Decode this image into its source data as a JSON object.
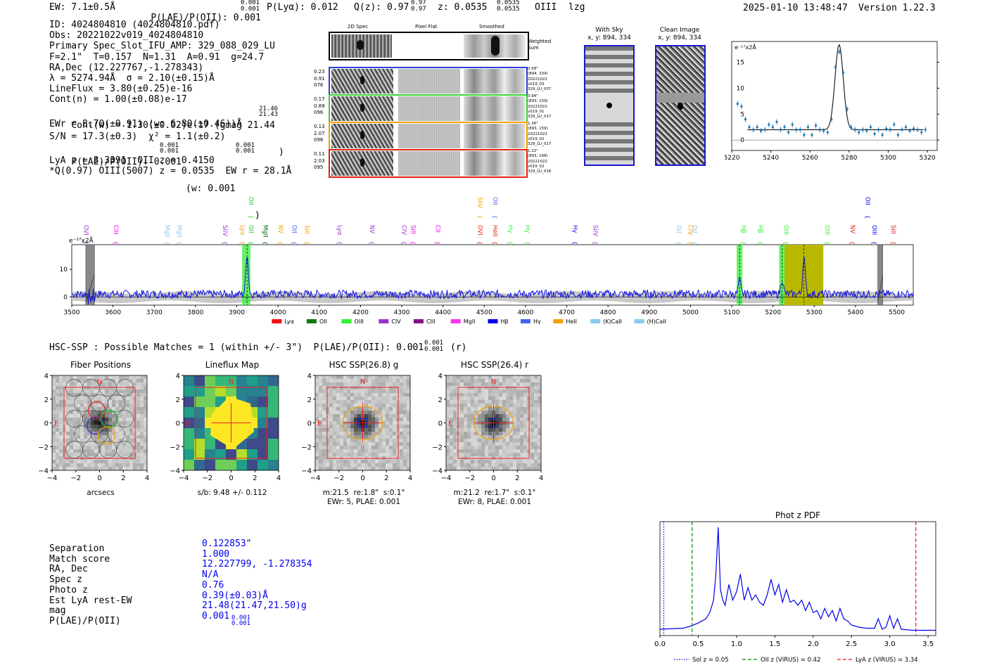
{
  "header": {
    "ew": "EW: 7.1±0.5Å",
    "plae_label": "P(LAE)/P(OII): 0.001",
    "plae_sup": "0.001",
    "plae_sub": "0.001",
    "plya": "P(Lyα): 0.012",
    "q_label": "Q(z): 0.97",
    "q_sup": "0.97",
    "q_sub": "0.97",
    "z_label": "z: 0.0535",
    "z_sup": "0.0535",
    "z_sub": "0.0535",
    "z_line": "OIII",
    "z_flag": "lzg",
    "datetime": "2025-01-10 13:48:47",
    "version": "Version 1.22.3"
  },
  "info": {
    "id": "ID: 4024804810 (4024804810.pdf)",
    "obs": "Obs: 20221022v019_4024804810",
    "primary": "Primary Spec_Slot_IFU_AMP: 329_088_029_LU",
    "fwhm": "F=2.1\"  T=0.157  N=1.31  A=0.91  g=24.7",
    "radec": "RA,Dec (12.227767,-1.278343)",
    "lambda": "λ = 5274.94Å  σ = 2.10(±0.15)Å",
    "lineflux": "LineFlux = 3.80(±0.25)e-16",
    "contn": "Cont(n) = 1.00(±0.08)e-17",
    "contw": "Cont(w) = 1.30(±0.02)e-17 (gmag 21.44",
    "contw_sup": "21.46",
    "contw_sub": "21.43",
    "ewr": "EWr = 8.70(±0.91) (w: 6.80(±0.46))Å",
    "sn": "S/N = 17.3(±0.3)  χ² = 1.1(±0.2)",
    "plae": "P(LAE)/P(OII): 0.001",
    "plae_sup": "0.001",
    "plae_sub": "0.001",
    "plae_w": "(w: 0.001",
    "plae_w_sup": "0.001",
    "plae_w_sub": "0.001",
    "lya": "LyA z = 3.3391  OII z = 0.4150",
    "q": "*Q(0.97) OIII(5007) z = 0.0535  EW r = 28.1Å"
  },
  "cutouts": {
    "col_2d": "2D Spec",
    "col_flat": "Pixel Flat",
    "col_smooth": "Smoothed",
    "weighted_sum": "Weighted Sum",
    "rows": [
      {
        "left": [
          "0.23",
          "0.91",
          "076"
        ],
        "right": [
          "0.58\"",
          "(894, 334)",
          "20221022",
          "v019_03",
          "329_LU_037"
        ],
        "color": "#2f3fd6"
      },
      {
        "left": [
          "0.17",
          "0.89",
          "096"
        ],
        "right": [
          "0.94\"",
          "(893, 159)",
          "20221022",
          "v019_01",
          "329_LU_017"
        ],
        "color": "#35d035"
      },
      {
        "left": [
          "0.13",
          "2.07",
          "096"
        ],
        "right": [
          "1.36\"",
          "(893, 159)",
          "20221022",
          "v019_02",
          "329_LU_017"
        ],
        "color": "#f4a000"
      },
      {
        "left": [
          "0.11",
          "2.03",
          "095"
        ],
        "right": [
          "1.22\"",
          "(893, 168)",
          "20221022",
          "v019_02",
          "329_LU_018"
        ],
        "color": "#e02010"
      }
    ],
    "with_sky": {
      "title": "With Sky",
      "coords": "x, y: 894, 334"
    },
    "clean_image": {
      "title": "Clean Image",
      "coords": "x, y: 894, 334"
    }
  },
  "zoom_chart": {
    "ylabel": "e⁻¹⁷x2Å",
    "xlim": [
      5220,
      5325
    ],
    "ylim": [
      -2,
      19
    ],
    "xticks": [
      "5220",
      "5240",
      "5260",
      "5280",
      "5300",
      "5320"
    ],
    "yticks": [
      "0",
      "5",
      "10",
      "15"
    ],
    "model_peak": 16.4,
    "model_center": 5274.9,
    "model_sigma": 2.1,
    "model_cont": 2.0,
    "points": [
      [
        5223,
        7
      ],
      [
        5225,
        6.5
      ],
      [
        5227,
        4
      ],
      [
        5229,
        2.5
      ],
      [
        5231,
        2
      ],
      [
        5233,
        2.5
      ],
      [
        5235,
        1.8
      ],
      [
        5237,
        2
      ],
      [
        5239,
        3
      ],
      [
        5241,
        2.5
      ],
      [
        5243,
        3.5
      ],
      [
        5245,
        2
      ],
      [
        5247,
        2.5
      ],
      [
        5249,
        1.5
      ],
      [
        5251,
        3
      ],
      [
        5253,
        2
      ],
      [
        5255,
        2
      ],
      [
        5257,
        1
      ],
      [
        5259,
        2.5
      ],
      [
        5261,
        1
      ],
      [
        5263,
        2.8
      ],
      [
        5265,
        2
      ],
      [
        5267,
        1.8
      ],
      [
        5269,
        1.5
      ],
      [
        5271,
        4
      ],
      [
        5273,
        14
      ],
      [
        5275,
        17
      ],
      [
        5277,
        13
      ],
      [
        5279,
        6
      ],
      [
        5281,
        2.5
      ],
      [
        5283,
        2
      ],
      [
        5285,
        1.5
      ],
      [
        5287,
        2
      ],
      [
        5289,
        1.8
      ],
      [
        5291,
        2.5
      ],
      [
        5293,
        1.2
      ],
      [
        5295,
        2
      ],
      [
        5297,
        1
      ],
      [
        5299,
        2.2
      ],
      [
        5301,
        2
      ],
      [
        5303,
        3
      ],
      [
        5305,
        1
      ],
      [
        5307,
        2
      ],
      [
        5309,
        2.5
      ],
      [
        5311,
        1.8
      ],
      [
        5313,
        2.2
      ],
      [
        5315,
        2
      ],
      [
        5317,
        1.5
      ],
      [
        5319,
        2
      ]
    ]
  },
  "full_spectrum": {
    "ylabel": "e⁻¹⁷x2Å",
    "xlim": [
      3500,
      5540
    ],
    "ylim": [
      -3,
      19
    ],
    "xticks": [
      "3500",
      "3600",
      "3700",
      "3800",
      "3900",
      "4000",
      "4100",
      "4200",
      "4300",
      "4400",
      "4500",
      "4600",
      "4700",
      "4800",
      "4900",
      "5000",
      "5100",
      "5200",
      "5300",
      "5400",
      "5500"
    ],
    "yticks": [
      "0",
      "10"
    ],
    "peaks": [
      [
        3925,
        15
      ],
      [
        5119,
        5
      ],
      [
        5222,
        5.5
      ],
      [
        5275,
        14
      ]
    ],
    "highlights": [
      {
        "x0": 3913,
        "x1": 3933,
        "color": "#33ee33"
      },
      {
        "x0": 5112,
        "x1": 5126,
        "color": "#33ee33"
      },
      {
        "x0": 5215,
        "x1": 5229,
        "color": "#33ee33"
      },
      {
        "x0": 5228,
        "x1": 5322,
        "color": "#b8b800"
      }
    ],
    "masks": [
      {
        "x0": 3534,
        "x1": 3555
      },
      {
        "x0": 5454,
        "x1": 5466
      }
    ],
    "dashed": [
      3925,
      5119,
      5222,
      5275
    ],
    "line_labels": [
      {
        "text": "OVI",
        "x": 3525,
        "color": "#9933cc",
        "row": 1
      },
      {
        "text": "CIII",
        "x": 3597,
        "color": "#ee00ee",
        "row": 1
      },
      {
        "text": "MgII",
        "x": 3722,
        "color": "#88ccee",
        "row": 1
      },
      {
        "text": "MgII",
        "x": 3752,
        "color": "#88ccee",
        "row": 1
      },
      {
        "text": "SiIV",
        "x": 3862,
        "color": "#9933cc",
        "row": 1
      },
      {
        "text": "Lyα",
        "x": 3904,
        "color": "#f4a000",
        "row": 1
      },
      {
        "text": "OII",
        "x": 3925,
        "color": "#22cc22",
        "row": 1
      },
      {
        "text": "OII",
        "x": 3925,
        "color": "#22cc22",
        "row": 0
      },
      {
        "text": "MgII",
        "x": 3960,
        "color": "#006600",
        "row": 1
      },
      {
        "text": "NV",
        "x": 3996,
        "color": "#f4a000",
        "row": 1
      },
      {
        "text": "OII",
        "x": 4030,
        "color": "#4466ee",
        "row": 1
      },
      {
        "text": "SiII",
        "x": 4060,
        "color": "#f4a000",
        "row": 1
      },
      {
        "text": "Lyα",
        "x": 4140,
        "color": "#9933cc",
        "row": 1
      },
      {
        "text": "NV",
        "x": 4218,
        "color": "#9933cc",
        "row": 1
      },
      {
        "text": "CIV",
        "x": 4296,
        "color": "#9933cc",
        "row": 1
      },
      {
        "text": "SiII",
        "x": 4318,
        "color": "#ee00ee",
        "row": 1
      },
      {
        "text": "CII",
        "x": 4378,
        "color": "#ee00ee",
        "row": 1
      },
      {
        "text": "SiIV",
        "x": 4480,
        "color": "#f4a000",
        "row": 0
      },
      {
        "text": "OVI",
        "x": 4480,
        "color": "#e02010",
        "row": 1
      },
      {
        "text": "OII",
        "x": 4517,
        "color": "#4466ee",
        "row": 0
      },
      {
        "text": "HeII",
        "x": 4517,
        "color": "#e02010",
        "row": 1
      },
      {
        "text": "Hγ",
        "x": 4553,
        "color": "#33ee33",
        "row": 1
      },
      {
        "text": "Hγ",
        "x": 4595,
        "color": "#33ee33",
        "row": 1
      },
      {
        "text": "Hγ",
        "x": 4710,
        "color": "#0000ee",
        "row": 1
      },
      {
        "text": "SiIV",
        "x": 4760,
        "color": "#9933cc",
        "row": 1
      },
      {
        "text": "OII",
        "x": 4962,
        "color": "#88ccee",
        "row": 1
      },
      {
        "text": "CIV",
        "x": 4990,
        "color": "#f4a000",
        "row": 1
      },
      {
        "text": "OII",
        "x": 5000,
        "color": "#88ccee",
        "row": 1
      },
      {
        "text": "Hβ",
        "x": 5119,
        "color": "#33ee33",
        "row": 1
      },
      {
        "text": "Hβ",
        "x": 5160,
        "color": "#33ee33",
        "row": 1
      },
      {
        "text": "OIII",
        "x": 5222,
        "color": "#33ee33",
        "row": 1
      },
      {
        "text": "OIII",
        "x": 5322,
        "color": "#33ee33",
        "row": 1
      },
      {
        "text": "NV",
        "x": 5383,
        "color": "#e02010",
        "row": 1
      },
      {
        "text": "OII",
        "x": 5420,
        "color": "#0000ee",
        "row": 0
      },
      {
        "text": "OIII",
        "x": 5436,
        "color": "#0000ee",
        "row": 1
      },
      {
        "text": "SiII",
        "x": 5482,
        "color": "#e02010",
        "row": 1
      }
    ],
    "legend": [
      {
        "label": "Lyα",
        "color": "#ee1111"
      },
      {
        "label": "OII",
        "color": "#117711"
      },
      {
        "label": "OIII",
        "color": "#33ee33"
      },
      {
        "label": "CIV",
        "color": "#9933cc"
      },
      {
        "label": "CIII",
        "color": "#881188"
      },
      {
        "label": "MgII",
        "color": "#ff33ee"
      },
      {
        "label": "Hβ",
        "color": "#0000ee"
      },
      {
        "label": "Hγ",
        "color": "#4466ee"
      },
      {
        "label": "HeII",
        "color": "#f4a000"
      },
      {
        "label": "(K)CaII",
        "color": "#88ccee"
      },
      {
        "label": "(H)CaII",
        "color": "#88ccee"
      }
    ]
  },
  "hsc": {
    "headline": "HSC-SSP : Possible Matches = 1 (within +/- 3\")  P(LAE)/P(OII): 0.001",
    "headline_sup": "0.001",
    "headline_sub": "0.001",
    "headline_tail": "(r)",
    "panels": [
      {
        "title": "Fiber Positions",
        "xlabel": "arcsecs",
        "caption": []
      },
      {
        "title": "Lineflux Map",
        "xlabel": "s/b: 9.48 +/- 0.112",
        "caption": []
      },
      {
        "title": "HSC SSP(26.8) g",
        "xlabel": "m:21.5  re:1.8\"  s:0.1\"",
        "caption": [
          "EWr: 5, PLAE: 0.001"
        ]
      },
      {
        "title": "HSC SSP(26.4) r",
        "xlabel": "m:21.2  re:1.7\"  s:0.1\"",
        "caption": [
          "EWr: 8, PLAE: 0.001"
        ]
      }
    ],
    "ticks": [
      "−4",
      "−2",
      "0",
      "2",
      "4"
    ],
    "yticks": [
      "4",
      "2",
      "0",
      "−2",
      "−4"
    ],
    "compass_n": "N",
    "compass_e": "E"
  },
  "match": {
    "labels": [
      "Separation",
      "Match score",
      "RA, Dec",
      "Spec z",
      "Photo z",
      "Est LyA rest-EW",
      "mag",
      "P(LAE)/P(OII)"
    ],
    "values": [
      "0.122853\"",
      "1.000",
      "12.227799, -1.278354",
      "N/A",
      "0.76",
      "0.39(±0.03)Å",
      "21.48(21.47,21.50)g",
      "0.001"
    ],
    "plae_sup": "0.001",
    "plae_sub": "0.001"
  },
  "photz": {
    "title": "Phot z PDF",
    "xlim": [
      0,
      3.6
    ],
    "xticks": [
      "0.0",
      "0.5",
      "1.0",
      "1.5",
      "2.0",
      "2.5",
      "3.0",
      "3.5"
    ],
    "vlines": [
      {
        "x": 0.05,
        "color": "#0000ee",
        "style": "dotted",
        "label": "Sol z = 0.05"
      },
      {
        "x": 0.42,
        "color": "#008800",
        "style": "dashed",
        "label": "OII z (VIRUS) = 0.42"
      },
      {
        "x": 3.34,
        "color": "#ee1111",
        "style": "dashed",
        "label": "LyA z (VIRUS) = 3.34"
      }
    ],
    "curve": [
      [
        0,
        0.02
      ],
      [
        0.3,
        0.03
      ],
      [
        0.4,
        0.05
      ],
      [
        0.5,
        0.08
      ],
      [
        0.55,
        0.1
      ],
      [
        0.6,
        0.12
      ],
      [
        0.65,
        0.18
      ],
      [
        0.7,
        0.3
      ],
      [
        0.73,
        0.55
      ],
      [
        0.76,
        1.0
      ],
      [
        0.79,
        0.4
      ],
      [
        0.82,
        0.3
      ],
      [
        0.85,
        0.25
      ],
      [
        0.9,
        0.45
      ],
      [
        0.95,
        0.3
      ],
      [
        1.0,
        0.38
      ],
      [
        1.05,
        0.55
      ],
      [
        1.1,
        0.3
      ],
      [
        1.15,
        0.42
      ],
      [
        1.2,
        0.3
      ],
      [
        1.25,
        0.35
      ],
      [
        1.3,
        0.28
      ],
      [
        1.35,
        0.25
      ],
      [
        1.4,
        0.35
      ],
      [
        1.45,
        0.5
      ],
      [
        1.5,
        0.35
      ],
      [
        1.55,
        0.45
      ],
      [
        1.6,
        0.28
      ],
      [
        1.65,
        0.4
      ],
      [
        1.7,
        0.28
      ],
      [
        1.75,
        0.3
      ],
      [
        1.8,
        0.25
      ],
      [
        1.85,
        0.3
      ],
      [
        1.9,
        0.2
      ],
      [
        1.95,
        0.28
      ],
      [
        2.0,
        0.18
      ],
      [
        2.05,
        0.2
      ],
      [
        2.1,
        0.12
      ],
      [
        2.15,
        0.22
      ],
      [
        2.2,
        0.14
      ],
      [
        2.25,
        0.2
      ],
      [
        2.3,
        0.1
      ],
      [
        2.35,
        0.22
      ],
      [
        2.4,
        0.12
      ],
      [
        2.45,
        0.1
      ],
      [
        2.5,
        0.06
      ],
      [
        2.6,
        0.04
      ],
      [
        2.7,
        0.03
      ],
      [
        2.8,
        0.03
      ],
      [
        2.85,
        0.12
      ],
      [
        2.9,
        0.02
      ],
      [
        2.95,
        0.04
      ],
      [
        3.0,
        0.15
      ],
      [
        3.05,
        0.03
      ],
      [
        3.1,
        0.12
      ],
      [
        3.15,
        0.02
      ],
      [
        3.3,
        0.01
      ],
      [
        3.6,
        0.01
      ]
    ]
  }
}
